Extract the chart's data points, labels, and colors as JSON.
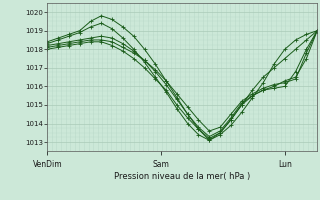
{
  "title": "Pression niveau de la mer( hPa )",
  "xlabel_ticks": [
    "VenDim",
    "Sam",
    "Lun"
  ],
  "xlabel_tick_positions": [
    0.0,
    0.42,
    0.88
  ],
  "ylim": [
    1012.5,
    1020.5
  ],
  "yticks": [
    1013,
    1014,
    1015,
    1016,
    1017,
    1018,
    1019,
    1020
  ],
  "xlim": [
    0.0,
    1.0
  ],
  "bg_color": "#cce8d8",
  "grid_color_major": "#aacab8",
  "grid_color_minor": "#bbdaca",
  "line_color": "#1a5c1a",
  "marker": "+",
  "lines": [
    {
      "x": [
        0.0,
        0.04,
        0.08,
        0.12,
        0.16,
        0.2,
        0.24,
        0.28,
        0.32,
        0.36,
        0.4,
        0.44,
        0.48,
        0.52,
        0.56,
        0.6,
        0.64,
        0.68,
        0.72,
        0.76,
        0.8,
        0.84,
        0.88,
        0.92,
        0.96,
        1.0
      ],
      "y": [
        1018.4,
        1018.6,
        1018.8,
        1019.0,
        1019.5,
        1019.8,
        1019.6,
        1019.2,
        1018.7,
        1018.0,
        1017.2,
        1016.3,
        1015.4,
        1014.5,
        1013.7,
        1013.1,
        1013.4,
        1013.9,
        1014.6,
        1015.4,
        1016.2,
        1017.2,
        1018.0,
        1018.5,
        1018.8,
        1019.0
      ]
    },
    {
      "x": [
        0.0,
        0.04,
        0.08,
        0.12,
        0.16,
        0.2,
        0.24,
        0.28,
        0.32,
        0.36,
        0.4,
        0.44,
        0.48,
        0.52,
        0.56,
        0.6,
        0.64,
        0.68,
        0.72,
        0.76,
        0.8,
        0.84,
        0.88,
        0.92,
        0.96,
        1.0
      ],
      "y": [
        1018.3,
        1018.5,
        1018.7,
        1018.9,
        1019.2,
        1019.4,
        1019.1,
        1018.6,
        1018.0,
        1017.3,
        1016.5,
        1015.7,
        1014.8,
        1014.0,
        1013.4,
        1013.1,
        1013.5,
        1014.2,
        1015.0,
        1015.8,
        1016.5,
        1017.0,
        1017.5,
        1018.0,
        1018.5,
        1019.0
      ]
    },
    {
      "x": [
        0.0,
        0.04,
        0.08,
        0.12,
        0.16,
        0.2,
        0.24,
        0.28,
        0.32,
        0.36,
        0.4,
        0.44,
        0.48,
        0.52,
        0.56,
        0.6,
        0.64,
        0.68,
        0.72,
        0.76,
        0.8,
        0.84,
        0.88,
        0.92,
        0.96,
        1.0
      ],
      "y": [
        1018.2,
        1018.3,
        1018.4,
        1018.5,
        1018.6,
        1018.7,
        1018.6,
        1018.3,
        1017.9,
        1017.4,
        1016.8,
        1016.1,
        1015.3,
        1014.5,
        1013.8,
        1013.3,
        1013.6,
        1014.3,
        1015.1,
        1015.5,
        1015.8,
        1016.0,
        1016.3,
        1016.5,
        1017.5,
        1019.0
      ]
    },
    {
      "x": [
        0.0,
        0.04,
        0.08,
        0.12,
        0.16,
        0.2,
        0.24,
        0.28,
        0.32,
        0.36,
        0.4,
        0.44,
        0.48,
        0.52,
        0.56,
        0.6,
        0.64,
        0.68,
        0.72,
        0.76,
        0.8,
        0.84,
        0.88,
        0.92,
        0.96,
        1.0
      ],
      "y": [
        1018.1,
        1018.2,
        1018.3,
        1018.4,
        1018.5,
        1018.5,
        1018.4,
        1018.1,
        1017.8,
        1017.4,
        1016.9,
        1016.3,
        1015.6,
        1014.9,
        1014.2,
        1013.6,
        1013.8,
        1014.5,
        1015.2,
        1015.6,
        1015.9,
        1016.1,
        1016.2,
        1016.4,
        1017.8,
        1019.0
      ]
    },
    {
      "x": [
        0.0,
        0.04,
        0.08,
        0.12,
        0.16,
        0.2,
        0.24,
        0.28,
        0.32,
        0.36,
        0.4,
        0.44,
        0.48,
        0.52,
        0.56,
        0.6,
        0.64,
        0.68,
        0.72,
        0.76,
        0.8,
        0.84,
        0.88,
        0.92,
        0.96,
        1.0
      ],
      "y": [
        1018.0,
        1018.1,
        1018.2,
        1018.3,
        1018.4,
        1018.4,
        1018.2,
        1017.9,
        1017.5,
        1017.0,
        1016.4,
        1015.8,
        1015.0,
        1014.3,
        1013.7,
        1013.2,
        1013.5,
        1014.2,
        1015.0,
        1015.5,
        1015.8,
        1015.9,
        1016.0,
        1016.8,
        1018.0,
        1019.0
      ]
    }
  ]
}
